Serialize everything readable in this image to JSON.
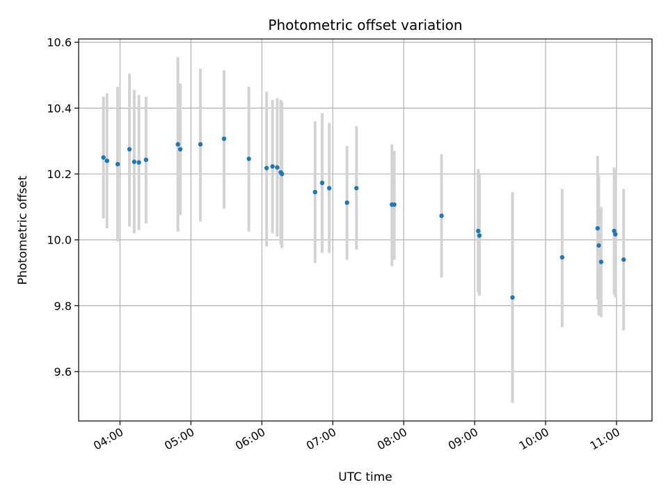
{
  "chart_data": {
    "type": "scatter",
    "title": "Photometric offset variation",
    "xlabel": "UTC time",
    "ylabel": "Photometric offset",
    "x_ticks": [
      "04:00",
      "05:00",
      "06:00",
      "07:00",
      "08:00",
      "09:00",
      "10:00",
      "11:00"
    ],
    "y_ticks": [
      "9.6",
      "9.8",
      "10.0",
      "10.2",
      "10.4",
      "10.6"
    ],
    "xlim": [
      "03:25",
      "11:30"
    ],
    "ylim": [
      9.45,
      10.61
    ],
    "grid": true,
    "colors": {
      "point": "#1f77b4",
      "error_bar": "#d3d3d3",
      "grid": "#b0b0b0"
    },
    "points": [
      {
        "x": "03:46",
        "y": 10.25,
        "ylo": 10.065,
        "yhi": 10.435
      },
      {
        "x": "03:49",
        "y": 10.24,
        "ylo": 10.035,
        "yhi": 10.445
      },
      {
        "x": "03:58",
        "y": 10.23,
        "ylo": 9.995,
        "yhi": 10.465
      },
      {
        "x": "04:08",
        "y": 10.275,
        "ylo": 10.04,
        "yhi": 10.505
      },
      {
        "x": "04:12",
        "y": 10.237,
        "ylo": 10.02,
        "yhi": 10.455
      },
      {
        "x": "04:16",
        "y": 10.235,
        "ylo": 10.03,
        "yhi": 10.44
      },
      {
        "x": "04:22",
        "y": 10.243,
        "ylo": 10.05,
        "yhi": 10.435
      },
      {
        "x": "04:49",
        "y": 10.29,
        "ylo": 10.025,
        "yhi": 10.555
      },
      {
        "x": "04:51",
        "y": 10.275,
        "ylo": 10.075,
        "yhi": 10.475
      },
      {
        "x": "05:08",
        "y": 10.29,
        "ylo": 10.055,
        "yhi": 10.52
      },
      {
        "x": "05:28",
        "y": 10.307,
        "ylo": 10.095,
        "yhi": 10.515
      },
      {
        "x": "05:49",
        "y": 10.246,
        "ylo": 10.025,
        "yhi": 10.465
      },
      {
        "x": "06:04",
        "y": 10.218,
        "ylo": 9.98,
        "yhi": 10.45
      },
      {
        "x": "06:09",
        "y": 10.223,
        "ylo": 10.02,
        "yhi": 10.425
      },
      {
        "x": "06:13",
        "y": 10.22,
        "ylo": 10.01,
        "yhi": 10.43
      },
      {
        "x": "06:16",
        "y": 10.205,
        "ylo": 9.985,
        "yhi": 10.425
      },
      {
        "x": "06:17",
        "y": 10.2,
        "ylo": 9.975,
        "yhi": 10.42
      },
      {
        "x": "06:45",
        "y": 10.145,
        "ylo": 9.93,
        "yhi": 10.36
      },
      {
        "x": "06:51",
        "y": 10.173,
        "ylo": 9.96,
        "yhi": 10.385
      },
      {
        "x": "06:57",
        "y": 10.157,
        "ylo": 9.96,
        "yhi": 10.355
      },
      {
        "x": "07:12",
        "y": 10.113,
        "ylo": 9.94,
        "yhi": 10.285
      },
      {
        "x": "07:20",
        "y": 10.157,
        "ylo": 9.97,
        "yhi": 10.345
      },
      {
        "x": "07:50",
        "y": 10.107,
        "ylo": 9.92,
        "yhi": 10.29
      },
      {
        "x": "07:52",
        "y": 10.107,
        "ylo": 9.94,
        "yhi": 10.27
      },
      {
        "x": "08:32",
        "y": 10.073,
        "ylo": 9.885,
        "yhi": 10.26
      },
      {
        "x": "09:03",
        "y": 10.027,
        "ylo": 9.84,
        "yhi": 10.215
      },
      {
        "x": "09:04",
        "y": 10.013,
        "ylo": 9.83,
        "yhi": 10.2
      },
      {
        "x": "09:32",
        "y": 9.825,
        "ylo": 9.505,
        "yhi": 10.145
      },
      {
        "x": "10:14",
        "y": 9.947,
        "ylo": 9.735,
        "yhi": 10.155
      },
      {
        "x": "10:44",
        "y": 10.035,
        "ylo": 9.82,
        "yhi": 10.255
      },
      {
        "x": "10:45",
        "y": 9.983,
        "ylo": 9.77,
        "yhi": 10.195
      },
      {
        "x": "10:47",
        "y": 9.933,
        "ylo": 9.765,
        "yhi": 10.1
      },
      {
        "x": "10:58",
        "y": 10.027,
        "ylo": 9.835,
        "yhi": 10.22
      },
      {
        "x": "10:59",
        "y": 10.017,
        "ylo": 9.825,
        "yhi": 10.21
      },
      {
        "x": "11:06",
        "y": 9.94,
        "ylo": 9.725,
        "yhi": 10.155
      }
    ]
  }
}
